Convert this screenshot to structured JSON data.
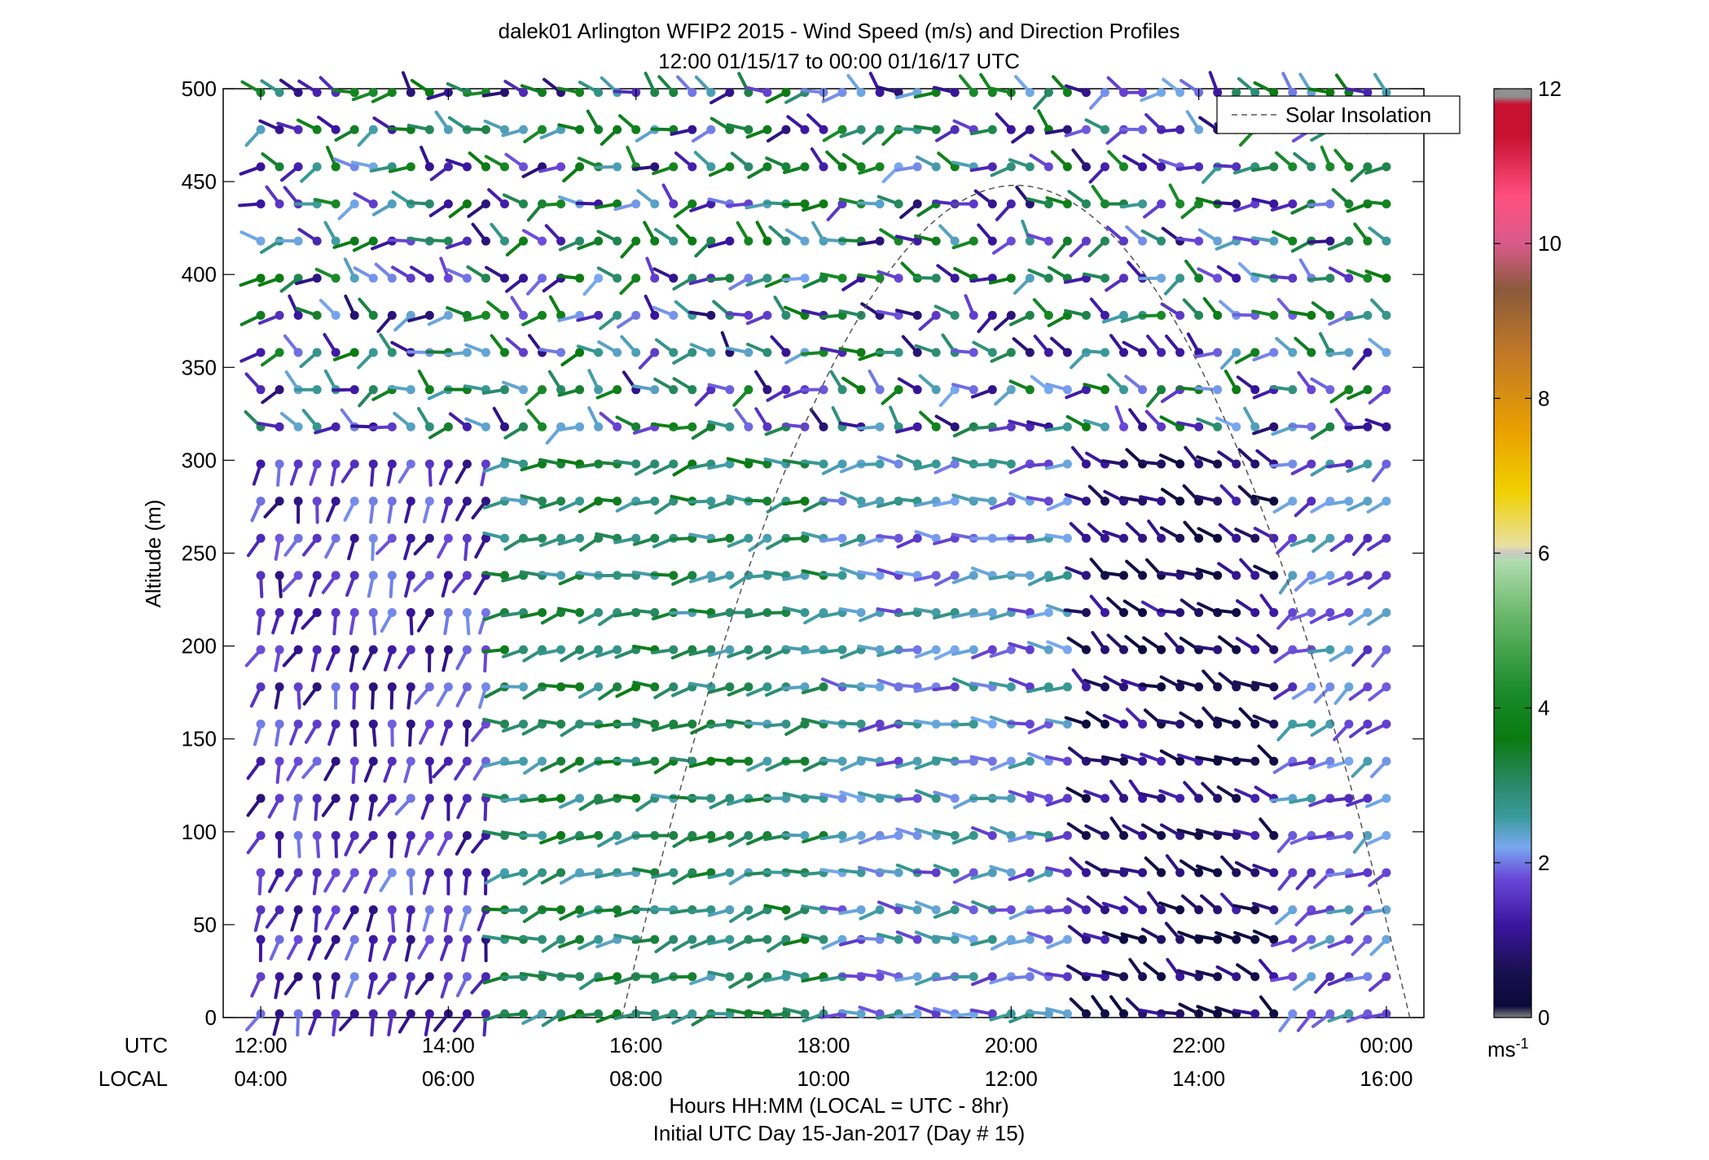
{
  "chart_data": {
    "type": "wind_barb_profile",
    "title": "dalek01 Arlington WFIP2 2015 - Wind Speed (m/s) and Direction Profiles",
    "subtitle": "12:00 01/15/17 to 00:00 01/16/17  UTC",
    "ylabel": "Altitude (m)",
    "xlabel": "Hours HH:MM  (LOCAL = UTC - 8hr)",
    "footer": "Initial UTC Day 15-Jan-2017 (Day # 15)",
    "row_label_utc": "UTC",
    "row_label_local": "LOCAL",
    "x_range_hours": [
      11.6,
      24.4
    ],
    "ylim": [
      0,
      500
    ],
    "y_ticks": [
      0,
      50,
      100,
      150,
      200,
      250,
      300,
      350,
      400,
      450,
      500
    ],
    "x_ticks": [
      {
        "hour": 12,
        "utc": "12:00",
        "local": "04:00"
      },
      {
        "hour": 14,
        "utc": "14:00",
        "local": "06:00"
      },
      {
        "hour": 16,
        "utc": "16:00",
        "local": "08:00"
      },
      {
        "hour": 18,
        "utc": "18:00",
        "local": "10:00"
      },
      {
        "hour": 20,
        "utc": "20:00",
        "local": "12:00"
      },
      {
        "hour": 22,
        "utc": "22:00",
        "local": "14:00"
      },
      {
        "hour": 24,
        "utc": "00:00",
        "local": "16:00"
      }
    ],
    "altitudes": [
      2,
      22,
      42,
      58,
      78,
      98,
      118,
      138,
      158,
      178,
      198,
      218,
      238,
      258,
      278,
      298,
      318,
      338,
      358,
      378,
      398,
      418,
      438,
      458,
      478,
      498
    ],
    "time_step_hours": 0.2,
    "legend": {
      "label": "Solar Insolation",
      "position": "top-right"
    },
    "solar_insolation": {
      "start_hour": 15.85,
      "end_hour": 24.25,
      "peak_hour": 20.05,
      "peak_altitude_m": 448
    },
    "colorbar": {
      "label": "ms",
      "label_exponent": "-1",
      "range": [
        0,
        12
      ],
      "ticks": [
        0,
        2,
        4,
        6,
        8,
        10,
        12
      ],
      "stops": [
        {
          "v": 0.0,
          "c": "#808080"
        },
        {
          "v": 0.15,
          "c": "#0a0a3a"
        },
        {
          "v": 0.6,
          "c": "#1a1050"
        },
        {
          "v": 1.2,
          "c": "#3a16a0"
        },
        {
          "v": 1.8,
          "c": "#6a48d8"
        },
        {
          "v": 2.2,
          "c": "#78a8f0"
        },
        {
          "v": 2.6,
          "c": "#3a9a9a"
        },
        {
          "v": 3.0,
          "c": "#2a8a6a"
        },
        {
          "v": 3.6,
          "c": "#0a7a10"
        },
        {
          "v": 4.2,
          "c": "#1a8a2a"
        },
        {
          "v": 5.2,
          "c": "#6ab86a"
        },
        {
          "v": 5.9,
          "c": "#b0dcb0"
        },
        {
          "v": 6.0,
          "c": "#c8c8c8"
        },
        {
          "v": 6.1,
          "c": "#e8e0a0"
        },
        {
          "v": 6.8,
          "c": "#f0d000"
        },
        {
          "v": 7.6,
          "c": "#e8a000"
        },
        {
          "v": 8.6,
          "c": "#c07828"
        },
        {
          "v": 9.4,
          "c": "#8a5a3a"
        },
        {
          "v": 10.0,
          "c": "#d85a8a"
        },
        {
          "v": 10.6,
          "c": "#ff5080"
        },
        {
          "v": 11.4,
          "c": "#c81030"
        },
        {
          "v": 11.8,
          "c": "#c81030"
        },
        {
          "v": 11.9,
          "c": "#909090"
        },
        {
          "v": 12.0,
          "c": "#909090"
        }
      ]
    },
    "wind_field_description": "Barbs every 12 minutes at 26 altitude bins; each barb is a dot with a stick pointing toward the wind's origin, coloured by speed.",
    "regimes": [
      {
        "hours": [
          11.8,
          14.5
        ],
        "altitudes": [
          0,
          300
        ],
        "speed": 1.5,
        "dir_deg": 200
      },
      {
        "hours": [
          14.5,
          18.0
        ],
        "altitudes": [
          0,
          300
        ],
        "speed": 3.0,
        "dir_deg": 260
      },
      {
        "hours": [
          18.0,
          20.6
        ],
        "altitudes": [
          0,
          300
        ],
        "speed": 2.2,
        "dir_deg": 268
      },
      {
        "hours": [
          20.6,
          22.8
        ],
        "altitudes": [
          0,
          300
        ],
        "speed": 0.8,
        "dir_deg": 300
      },
      {
        "hours": [
          22.8,
          24.0
        ],
        "altitudes": [
          0,
          300
        ],
        "speed": 2.0,
        "dir_deg": 240
      },
      {
        "hours": [
          11.8,
          24.0
        ],
        "altitudes": [
          300,
          500
        ],
        "speed": 2.5,
        "dir_deg": 280
      }
    ]
  }
}
